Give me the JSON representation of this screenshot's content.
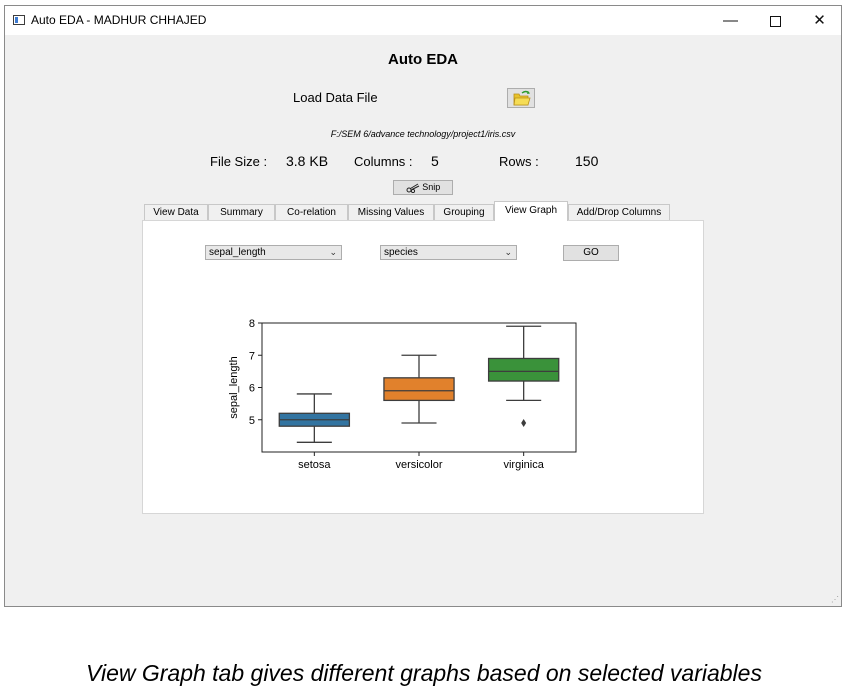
{
  "window": {
    "title": "Auto EDA - MADHUR CHHAJED",
    "min_symbol": "—",
    "close_symbol": "✕"
  },
  "app": {
    "heading": "Auto EDA",
    "load_label": "Load Data File",
    "file_path": "F:/SEM 6/advance technology/project1/iris.csv",
    "file_size_label": "File Size :",
    "file_size_value": "3.8 KB",
    "columns_label": "Columns :",
    "columns_value": "5",
    "rows_label": "Rows :",
    "rows_value": "150",
    "snip_label": "Snip"
  },
  "tabs": [
    "View Data",
    "Summary",
    "Co-relation",
    "Missing Values",
    "Grouping",
    "View Graph",
    "Add/Drop Columns"
  ],
  "active_tab": "View Graph",
  "graph_controls": {
    "x_select": "sepal_length",
    "y_select": "species",
    "go_label": "GO"
  },
  "chart_data": {
    "type": "box",
    "categories": [
      "setosa",
      "versicolor",
      "virginica"
    ],
    "ylabel": "sepal_length",
    "xlabel": "",
    "ylim": [
      4.0,
      8.0
    ],
    "yticks": [
      "5",
      "6",
      "7",
      "8"
    ],
    "boxes": [
      {
        "name": "setosa",
        "whisker_low": 4.3,
        "q1": 4.8,
        "median": 5.0,
        "q3": 5.2,
        "whisker_high": 5.8,
        "outliers": [],
        "color": "#3274a1"
      },
      {
        "name": "versicolor",
        "whisker_low": 4.9,
        "q1": 5.6,
        "median": 5.9,
        "q3": 6.3,
        "whisker_high": 7.0,
        "outliers": [],
        "color": "#e1812c"
      },
      {
        "name": "virginica",
        "whisker_low": 5.6,
        "q1": 6.2,
        "median": 6.5,
        "q3": 6.9,
        "whisker_high": 7.9,
        "outliers": [
          4.9
        ],
        "color": "#3a923a"
      }
    ]
  },
  "caption": "View Graph tab gives different graphs based on selected variables"
}
